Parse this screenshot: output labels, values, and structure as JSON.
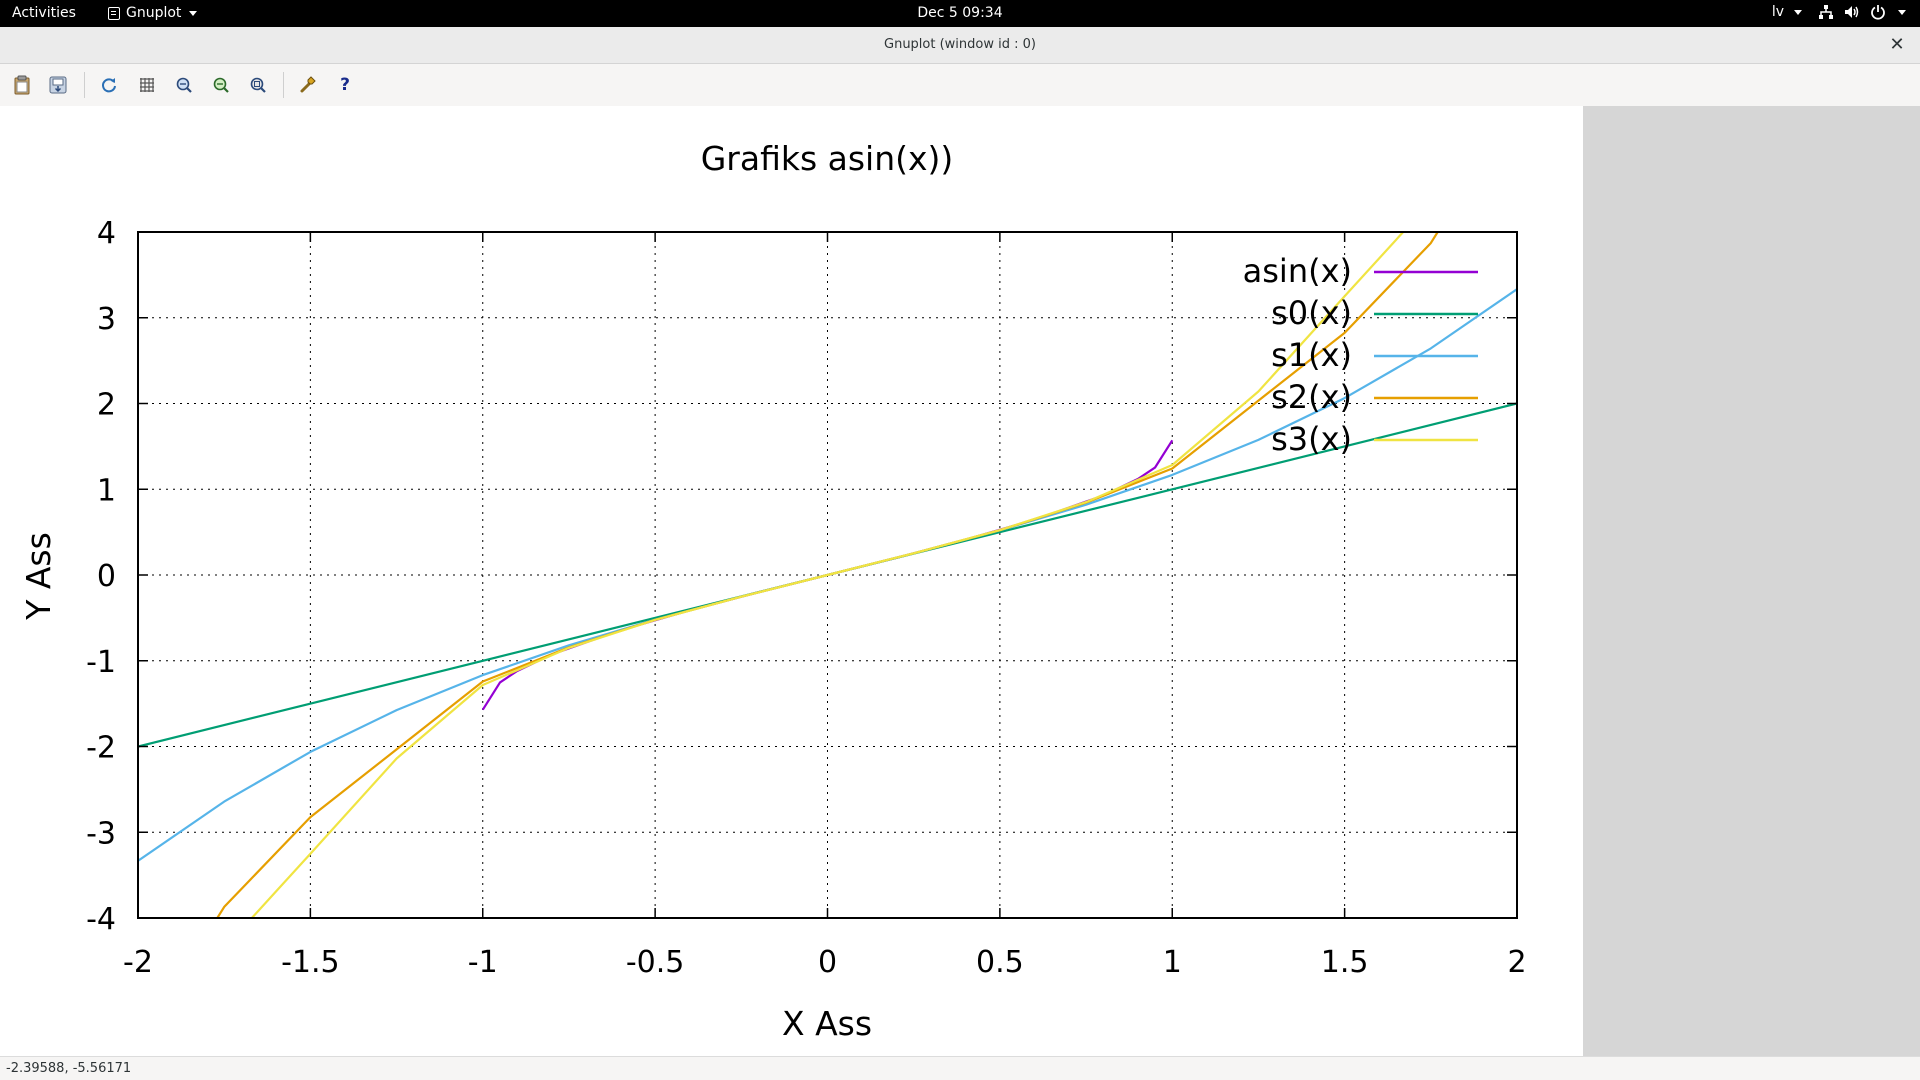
{
  "topbar": {
    "activities": "Activities",
    "app_menu": "Gnuplot",
    "clock": "Dec 5  09:34",
    "keyboard_layout": "lv",
    "icons": [
      "network-icon",
      "volume-icon",
      "power-icon"
    ]
  },
  "window": {
    "title": "Gnuplot (window id : 0)",
    "close_symbol": "✕"
  },
  "toolbar": {
    "buttons": [
      {
        "name": "copy-to-clipboard-icon"
      },
      {
        "name": "export-icon"
      },
      {
        "name": "replot-icon"
      },
      {
        "name": "grid-icon"
      },
      {
        "name": "zoom-previous-icon"
      },
      {
        "name": "zoom-next-icon"
      },
      {
        "name": "unzoom-icon"
      },
      {
        "name": "settings-icon"
      },
      {
        "name": "help-icon"
      }
    ],
    "help_glyph": "?"
  },
  "chart_data": {
    "type": "line",
    "title": "Grafiks asin(x))",
    "xlabel": "X Ass",
    "ylabel": "Y Ass",
    "xlim": [
      -2,
      2
    ],
    "ylim": [
      -4,
      4
    ],
    "grid": true,
    "legend_position": "top-right",
    "x_ticks": [
      "-2",
      "-1.5",
      "-1",
      "-0.5",
      "0",
      "0.5",
      "1",
      "1.5",
      "2"
    ],
    "y_ticks": [
      "4",
      "3",
      "2",
      "1",
      "0",
      "-1",
      "-2",
      "-3",
      "-4"
    ],
    "series": [
      {
        "name": "asin(x)",
        "color": "#9400d3",
        "x": [
          -1,
          -0.95,
          -0.9,
          -0.8,
          -0.6,
          -0.4,
          -0.2,
          0,
          0.2,
          0.4,
          0.6,
          0.8,
          0.9,
          0.95,
          1
        ],
        "y": [
          -1.571,
          -1.253,
          -1.12,
          -0.927,
          -0.644,
          -0.412,
          -0.201,
          0,
          0.201,
          0.412,
          0.644,
          0.927,
          1.12,
          1.253,
          1.571
        ]
      },
      {
        "name": "s0(x)",
        "color": "#009e73",
        "x": [
          -2,
          -1,
          0,
          1,
          2
        ],
        "y": [
          -2,
          -1,
          0,
          1,
          2
        ]
      },
      {
        "name": "s1(x)",
        "color": "#56b4e9",
        "x": [
          -2,
          -1.75,
          -1.5,
          -1.25,
          -1,
          -0.75,
          -0.5,
          -0.25,
          0,
          0.25,
          0.5,
          0.75,
          1,
          1.25,
          1.5,
          1.75,
          2
        ],
        "y": [
          -3.333,
          -2.643,
          -2.063,
          -1.576,
          -1.167,
          -0.82,
          -0.521,
          -0.253,
          0,
          0.253,
          0.521,
          0.82,
          1.167,
          1.576,
          2.063,
          2.643,
          3.333
        ]
      },
      {
        "name": "s2(x)",
        "color": "#e69f00",
        "x": [
          -1.77,
          -1.75,
          -1.5,
          -1.25,
          -1,
          -0.75,
          -0.5,
          -0.25,
          0,
          0.25,
          0.5,
          0.75,
          1,
          1.25,
          1.5,
          1.75,
          1.77
        ],
        "y": [
          -4.0,
          -3.87,
          -2.823,
          -2.034,
          -1.242,
          -0.844,
          -0.523,
          -0.253,
          0,
          0.253,
          0.523,
          0.844,
          1.242,
          2.034,
          2.823,
          3.87,
          4.0
        ]
      },
      {
        "name": "s3(x)",
        "color": "#f0e442",
        "x": [
          -1.67,
          -1.5,
          -1.25,
          -1,
          -0.75,
          -0.5,
          -0.25,
          0,
          0.25,
          0.5,
          0.75,
          1,
          1.25,
          1.5,
          1.67
        ],
        "y": [
          -4.0,
          -3.25,
          -2.14,
          -1.283,
          -0.85,
          -0.524,
          -0.253,
          0,
          0.253,
          0.524,
          0.85,
          1.283,
          2.14,
          3.25,
          4.0
        ]
      }
    ]
  },
  "status": {
    "coords": "-2.39588, -5.56171"
  }
}
